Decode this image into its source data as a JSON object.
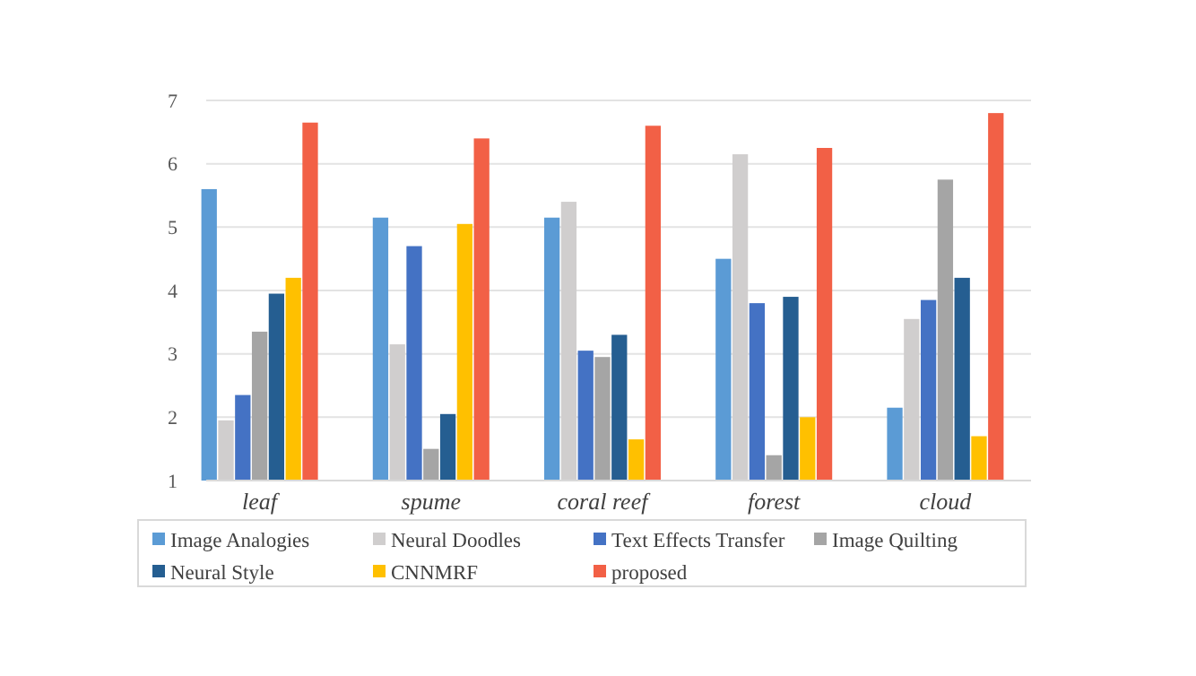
{
  "chart_data": {
    "type": "bar",
    "categories": [
      "leaf",
      "spume",
      "coral reef",
      "forest",
      "cloud"
    ],
    "series": [
      {
        "name": "Image Analogies",
        "color": "#5b9bd5",
        "values": [
          5.6,
          5.15,
          5.15,
          4.5,
          2.15
        ]
      },
      {
        "name": "Neural Doodles",
        "color": "#d0cece",
        "values": [
          1.95,
          3.15,
          5.4,
          6.15,
          3.55
        ]
      },
      {
        "name": "Text Effects Transfer",
        "color": "#4472c4",
        "values": [
          2.35,
          4.7,
          3.05,
          3.8,
          3.85
        ]
      },
      {
        "name": "Image Quilting",
        "color": "#a5a5a5",
        "values": [
          3.35,
          1.5,
          2.95,
          1.4,
          5.75
        ]
      },
      {
        "name": "Neural Style",
        "color": "#255e91",
        "values": [
          3.95,
          2.05,
          3.3,
          3.9,
          4.2
        ]
      },
      {
        "name": "CNNMRF",
        "color": "#ffc000",
        "values": [
          4.2,
          5.05,
          1.65,
          2.0,
          1.7
        ]
      },
      {
        "name": "proposed",
        "color": "#f26046",
        "values": [
          6.65,
          6.4,
          6.6,
          6.25,
          6.8
        ]
      }
    ],
    "ylim": [
      1,
      7
    ],
    "yticks": [
      1,
      2,
      3,
      4,
      5,
      6,
      7
    ],
    "grid": "y",
    "legend": "bottom"
  }
}
